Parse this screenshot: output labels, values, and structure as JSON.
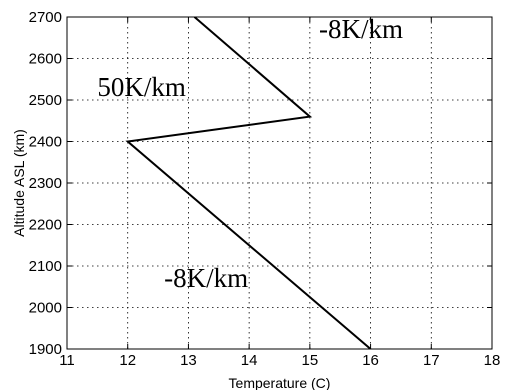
{
  "chart_data": {
    "type": "line",
    "title": "",
    "xlabel": "Temperature (C)",
    "ylabel": "Altitude ASL (km)",
    "xlim": [
      11,
      18
    ],
    "ylim": [
      1900,
      2700
    ],
    "xticks": [
      11,
      12,
      13,
      14,
      15,
      16,
      17,
      18
    ],
    "yticks": [
      1900,
      2000,
      2100,
      2200,
      2300,
      2400,
      2500,
      2600,
      2700
    ],
    "grid": true,
    "series": [
      {
        "x": [
          16,
          12,
          15,
          13.1
        ],
        "y": [
          1900,
          2400,
          2460,
          2700
        ]
      }
    ],
    "annotations": [
      {
        "text": "-8K/km",
        "x": 15.15,
        "y": 2650
      },
      {
        "text": "50K/km",
        "x": 11.5,
        "y": 2510
      },
      {
        "text": "-8K/km",
        "x": 12.6,
        "y": 2050
      }
    ]
  }
}
